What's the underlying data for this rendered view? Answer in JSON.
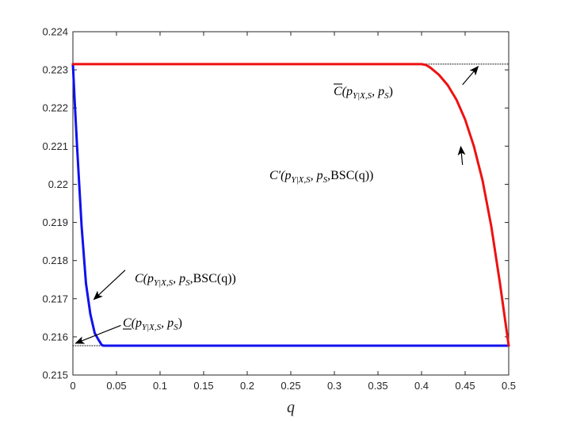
{
  "chart_data": {
    "type": "line",
    "title": "",
    "xlabel": "q",
    "ylabel": "",
    "xlim": [
      0,
      0.5
    ],
    "ylim": [
      0.215,
      0.224
    ],
    "grid": false,
    "xticks": [
      0,
      0.05,
      0.1,
      0.15,
      0.2,
      0.25,
      0.3,
      0.35,
      0.4,
      0.45,
      0.5
    ],
    "xtick_labels": [
      "0",
      "0.05",
      "0.1",
      "0.15",
      "0.2",
      "0.25",
      "0.3",
      "0.35",
      "0.4",
      "0.45",
      "0.5"
    ],
    "yticks": [
      0.215,
      0.216,
      0.217,
      0.218,
      0.219,
      0.22,
      0.221,
      0.222,
      0.223,
      0.224
    ],
    "ytick_labels": [
      "0.215",
      "0.216",
      "0.217",
      "0.218",
      "0.219",
      "0.22",
      "0.221",
      "0.222",
      "0.223",
      "0.224"
    ],
    "series": [
      {
        "color": "#ee1111",
        "style": "solid",
        "x": [
          0,
          0.05,
          0.1,
          0.15,
          0.2,
          0.25,
          0.3,
          0.35,
          0.38,
          0.39,
          0.4,
          0.405,
          0.41,
          0.42,
          0.43,
          0.44,
          0.45,
          0.46,
          0.47,
          0.48,
          0.49,
          0.5
        ],
        "y": [
          0.22315,
          0.22315,
          0.22315,
          0.22315,
          0.22315,
          0.22315,
          0.22315,
          0.22315,
          0.22315,
          0.22315,
          0.22315,
          0.22313,
          0.22306,
          0.22287,
          0.2226,
          0.22222,
          0.2217,
          0.221,
          0.2201,
          0.2189,
          0.2174,
          0.21577
        ]
      },
      {
        "color": "#1111ee",
        "style": "solid",
        "x": [
          0,
          0.002,
          0.005,
          0.008,
          0.01,
          0.015,
          0.02,
          0.025,
          0.03,
          0.033,
          0.035,
          0.04,
          0.1,
          0.2,
          0.3,
          0.4,
          0.5
        ],
        "y": [
          0.22315,
          0.2222,
          0.2209,
          0.2197,
          0.2189,
          0.2174,
          0.2166,
          0.2161,
          0.2159,
          0.21579,
          0.21577,
          0.21577,
          0.21577,
          0.21577,
          0.21577,
          0.21577,
          0.21577
        ]
      },
      {
        "color": "#000000",
        "style": "dotted",
        "x": [
          0.4,
          0.5
        ],
        "y": [
          0.22315,
          0.22315
        ]
      },
      {
        "color": "#000000",
        "style": "dotted",
        "x": [
          0,
          0.035
        ],
        "y": [
          0.21577,
          0.21577
        ]
      }
    ],
    "annotations": [
      {
        "id": "cbar",
        "main": "C",
        "overline": true,
        "sub": "Y|X,S",
        "mid": ", p",
        "sub2": "S",
        "tail": ")",
        "arrow_from": [
          0.447,
          0.22261
        ],
        "arrow_to": [
          0.465,
          0.22309
        ]
      },
      {
        "id": "cprime",
        "main": "C′",
        "overline": false,
        "sub": "Y|X,S",
        "mid": ", p",
        "sub2": "S",
        "tail": ",BSC(q))",
        "arrow_from": [
          0.447,
          0.22051
        ],
        "arrow_to": [
          0.445,
          0.22099
        ]
      },
      {
        "id": "cq",
        "main": "C",
        "overline": false,
        "sub": "Y|X,S",
        "mid": ", p",
        "sub2": "S",
        "tail": ",BSC(q))",
        "arrow_from": [
          0.06,
          0.21775
        ],
        "arrow_to": [
          0.024,
          0.21698
        ]
      },
      {
        "id": "cunder",
        "main": "C",
        "overline": false,
        "underline": true,
        "sub": "Y|X,S",
        "mid": ", p",
        "sub2": "S",
        "tail": ")",
        "arrow_from": [
          0.055,
          0.2163
        ],
        "arrow_to": [
          0.003,
          0.21583
        ]
      }
    ]
  }
}
